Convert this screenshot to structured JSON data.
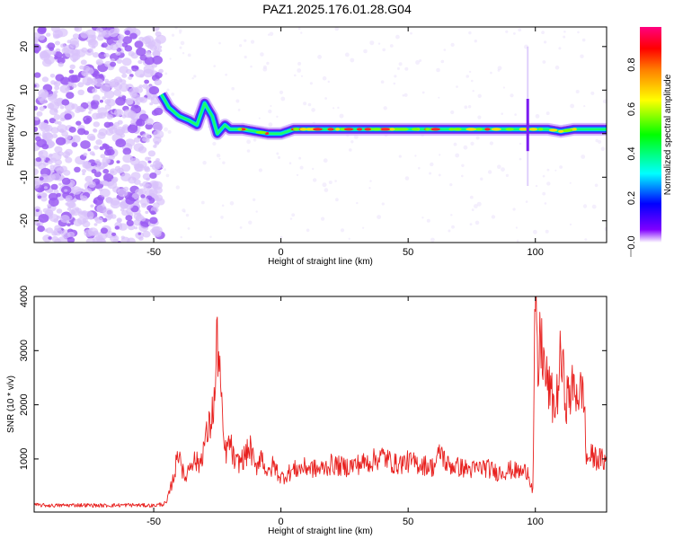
{
  "title": "PAZ1.2025.176.01.28.G04",
  "colors": {
    "snr_line": "#e8211f",
    "spec_dots": "#9b5cf2",
    "spec_dots_light": "#d9c2fb",
    "axis": "#000000",
    "background": "#ffffff"
  },
  "chart_data": [
    {
      "type": "heatmap",
      "title": "PAZ1.2025.176.01.28.G04",
      "xlabel": "Height of straight line (km)",
      "ylabel": "Frequency (Hz)",
      "xlim": [
        -97,
        128
      ],
      "ylim": [
        -25,
        24.5
      ],
      "xticks": [
        -50,
        0,
        50,
        100
      ],
      "yticks": [
        -20,
        -10,
        0,
        10,
        20
      ],
      "colorbar": {
        "label": "Normalized spectral amplitude",
        "range": [
          0.0,
          0.97
        ],
        "ticks": [
          0.0,
          0.2,
          0.4,
          0.6,
          0.8
        ],
        "tick_labels": [
          "0.0",
          "0.2",
          "0.4",
          "0.6",
          "0.8"
        ],
        "colormap": "rainbow"
      },
      "noise_region_x": [
        -97,
        -47
      ],
      "signal_track": {
        "x": [
          -47,
          -44,
          -40,
          -36,
          -33,
          -30,
          -27,
          -25,
          -22,
          -20,
          -15,
          -10,
          -5,
          0,
          5,
          10,
          20,
          30,
          40,
          50,
          60,
          70,
          80,
          90,
          97,
          100,
          105,
          110,
          115,
          120,
          128
        ],
        "y": [
          9,
          6,
          4,
          3,
          2,
          7,
          4,
          0,
          2,
          1,
          1,
          0.5,
          0,
          0,
          1,
          1,
          1,
          1,
          1,
          1,
          1,
          1,
          1,
          1,
          1,
          1,
          1,
          0.5,
          1,
          1,
          1
        ]
      }
    },
    {
      "type": "line",
      "xlabel": "Height of straight line (km)",
      "ylabel": "SNR (10 * v/v)",
      "xlim": [
        -97,
        128
      ],
      "ylim": [
        20,
        4000
      ],
      "xticks": [
        -50,
        0,
        50,
        100
      ],
      "yticks": [
        1000,
        2000,
        3000,
        4000
      ],
      "series": [
        {
          "x": [
            -97,
            -90,
            -80,
            -70,
            -60,
            -50,
            -45,
            -42,
            -40,
            -38,
            -35,
            -32,
            -30,
            -28,
            -26,
            -25,
            -24,
            -23,
            -22,
            -20,
            -18,
            -15,
            -12,
            -10,
            -8,
            -5,
            -3,
            0,
            5,
            10,
            15,
            20,
            25,
            30,
            35,
            40,
            45,
            50,
            55,
            60,
            63,
            65,
            70,
            75,
            80,
            85,
            90,
            95,
            97,
            99,
            100,
            101,
            102,
            104,
            106,
            108,
            110,
            112,
            115,
            118,
            119,
            120,
            122,
            125,
            128
          ],
          "y": [
            150,
            140,
            150,
            140,
            150,
            140,
            180,
            700,
            1200,
            600,
            1000,
            900,
            1300,
            1600,
            2100,
            3300,
            2600,
            1600,
            1100,
            1300,
            900,
            1000,
            1200,
            800,
            1100,
            700,
            900,
            650,
            800,
            850,
            800,
            900,
            850,
            900,
            950,
            1050,
            900,
            950,
            900,
            850,
            1150,
            900,
            850,
            800,
            850,
            750,
            800,
            750,
            800,
            400,
            4000,
            2400,
            3300,
            2500,
            2200,
            1900,
            2900,
            2100,
            2300,
            2200,
            2300,
            1000,
            1050,
            1000,
            950
          ]
        }
      ]
    }
  ]
}
